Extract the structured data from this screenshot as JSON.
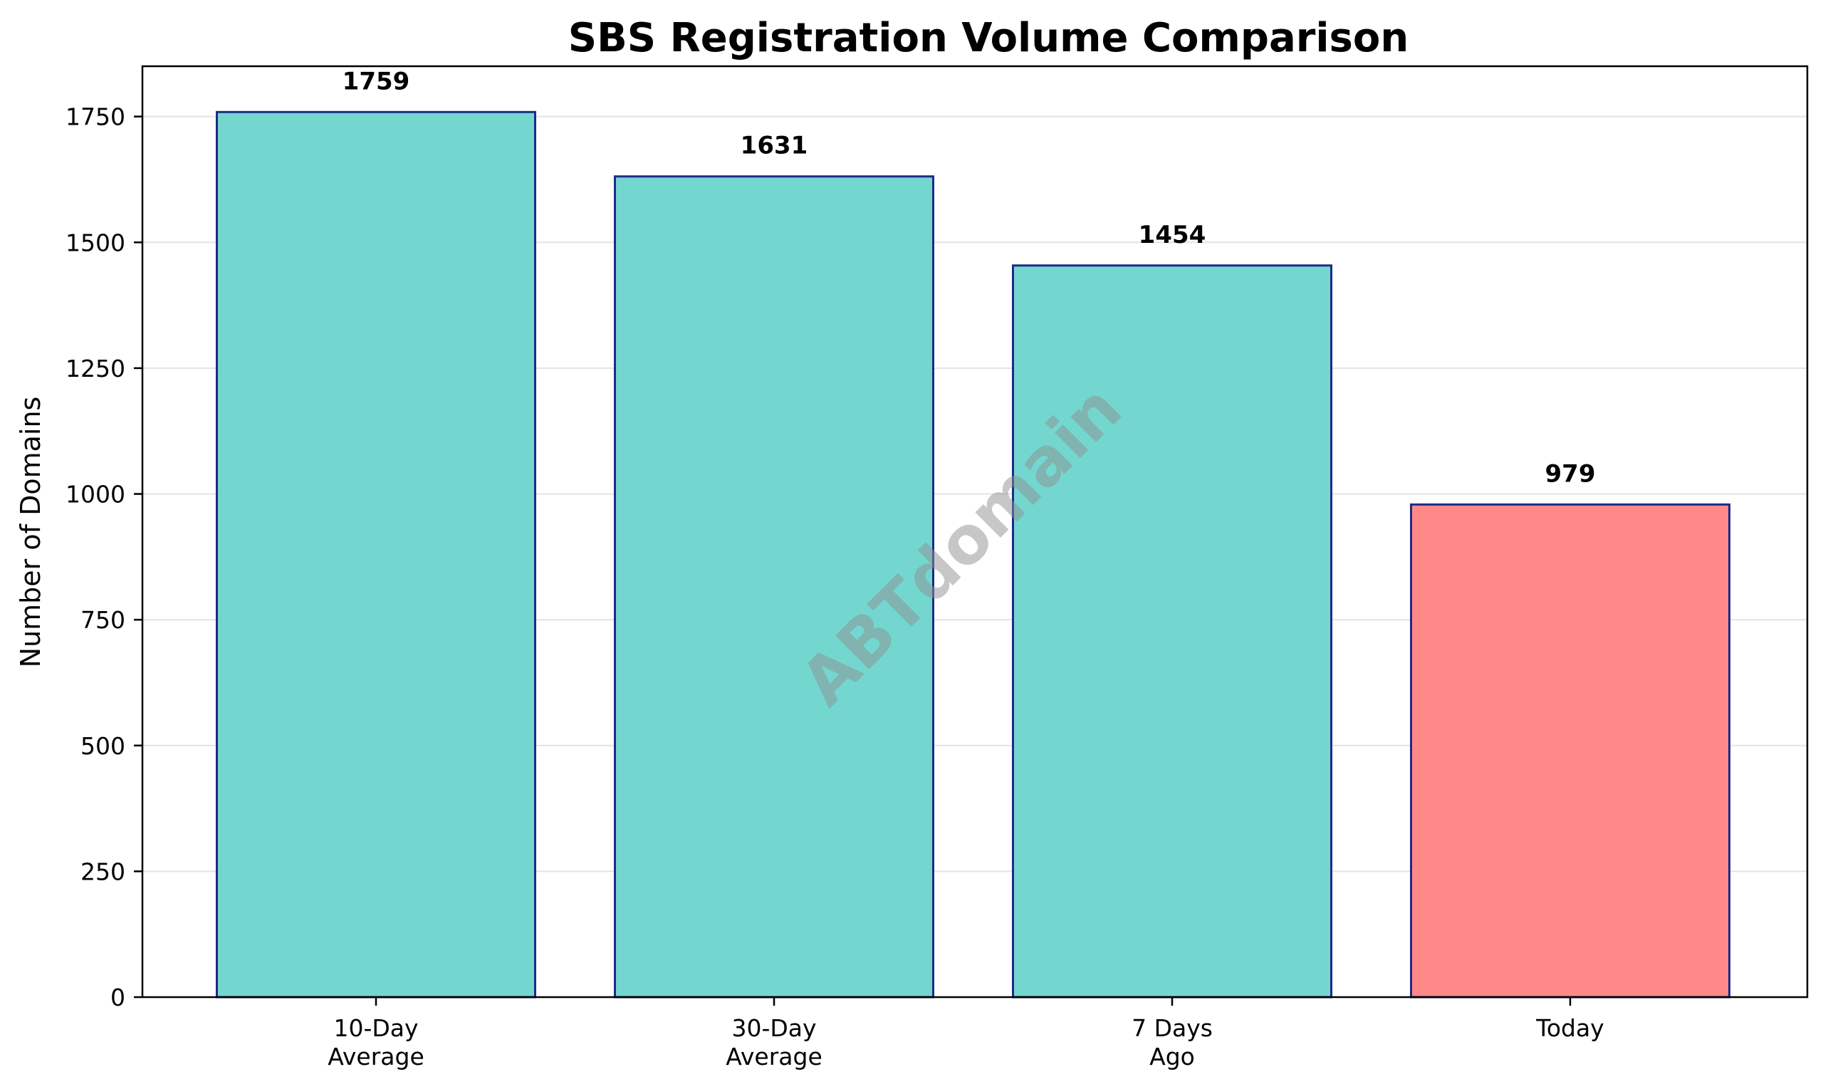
{
  "chart_data": {
    "type": "bar",
    "title": "SBS Registration Volume Comparison",
    "xlabel": "",
    "ylabel": "Number of Domains",
    "categories": [
      [
        "10-Day",
        "Average"
      ],
      [
        "30-Day",
        "Average"
      ],
      [
        "7 Days",
        "Ago"
      ],
      [
        "Today"
      ]
    ],
    "values": [
      1759,
      1631,
      1454,
      979
    ],
    "value_labels": [
      "1759",
      "1631",
      "1454",
      "979"
    ],
    "bar_colors": [
      "#73d7d0",
      "#73d7d0",
      "#73d7d0",
      "#ff8989"
    ],
    "bar_edge_color": "#1f2a86",
    "ylim": [
      0,
      1850
    ],
    "yticks": [
      0,
      250,
      500,
      750,
      1000,
      1250,
      1500,
      1750
    ],
    "ytick_labels": [
      "0",
      "250",
      "500",
      "750",
      "1000",
      "1250",
      "1500",
      "1750"
    ],
    "grid": "y",
    "watermark": "ABTdomain"
  }
}
